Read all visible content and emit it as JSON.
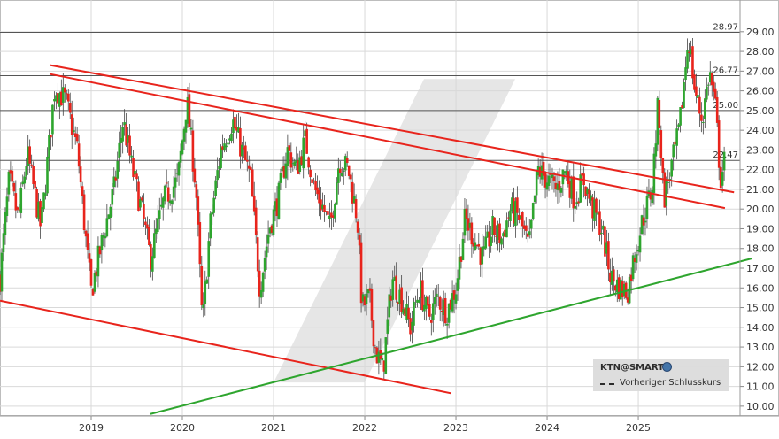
{
  "chart_data": {
    "type": "candlestick",
    "y_ticks": [
      "29.00",
      "28.00",
      "27.00",
      "26.00",
      "25.00",
      "24.00",
      "23.00",
      "22.00",
      "21.00",
      "20.00",
      "19.00",
      "18.00",
      "17.00",
      "16.00",
      "15.00",
      "14.00",
      "13.00",
      "12.00",
      "11.00",
      "10.00"
    ],
    "x_ticks": [
      "2019",
      "2020",
      "2021",
      "2022",
      "2023",
      "2024",
      "2025"
    ],
    "ylim": [
      9.5,
      29.8
    ],
    "xlim": [
      2018.0,
      2025.98
    ],
    "grid": true,
    "horizontal_levels": [
      {
        "label": "28.97",
        "value": 28.97
      },
      {
        "label": "26.77",
        "value": 26.77
      },
      {
        "label": "25.00",
        "value": 25.0
      },
      {
        "label": "22.47",
        "value": 22.47
      }
    ],
    "trend_lines": [
      {
        "color": "#e8241c",
        "from": [
          2018.55,
          27.3
        ],
        "to": [
          2026.05,
          20.85
        ]
      },
      {
        "color": "#e8241c",
        "from": [
          2018.55,
          26.85
        ],
        "to": [
          2025.95,
          20.05
        ]
      },
      {
        "color": "#e8241c",
        "from": [
          2018.0,
          15.35
        ],
        "to": [
          2022.95,
          10.65
        ]
      },
      {
        "color": "#2ea52e",
        "from": [
          2019.65,
          9.6
        ],
        "to": [
          2026.25,
          17.5
        ]
      }
    ],
    "price_path": [
      [
        2018.0,
        16.5
      ],
      [
        2018.1,
        21.5
      ],
      [
        2018.2,
        19.5
      ],
      [
        2018.3,
        22.8
      ],
      [
        2018.45,
        19.0
      ],
      [
        2018.6,
        26.2
      ],
      [
        2018.72,
        25.5
      ],
      [
        2018.85,
        23.0
      ],
      [
        2018.95,
        18.0
      ],
      [
        2019.0,
        15.8
      ],
      [
        2019.15,
        19.0
      ],
      [
        2019.25,
        21.0
      ],
      [
        2019.35,
        24.5
      ],
      [
        2019.45,
        22.0
      ],
      [
        2019.55,
        20.0
      ],
      [
        2019.65,
        17.5
      ],
      [
        2019.8,
        20.5
      ],
      [
        2019.95,
        21.5
      ],
      [
        2020.05,
        25.5
      ],
      [
        2020.15,
        21.0
      ],
      [
        2020.22,
        14.0
      ],
      [
        2020.3,
        19.0
      ],
      [
        2020.42,
        23.0
      ],
      [
        2020.55,
        24.5
      ],
      [
        2020.65,
        23.0
      ],
      [
        2020.75,
        21.5
      ],
      [
        2020.85,
        16.0
      ],
      [
        2020.95,
        19.0
      ],
      [
        2021.05,
        20.5
      ],
      [
        2021.15,
        23.0
      ],
      [
        2021.25,
        22.0
      ],
      [
        2021.35,
        23.5
      ],
      [
        2021.45,
        21.0
      ],
      [
        2021.55,
        20.0
      ],
      [
        2021.62,
        19.0
      ],
      [
        2021.72,
        22.5
      ],
      [
        2021.82,
        22.0
      ],
      [
        2021.92,
        19.5
      ],
      [
        2021.97,
        15.0
      ],
      [
        2022.05,
        15.5
      ],
      [
        2022.12,
        12.8
      ],
      [
        2022.2,
        11.8
      ],
      [
        2022.3,
        16.5
      ],
      [
        2022.4,
        15.5
      ],
      [
        2022.5,
        14.0
      ],
      [
        2022.6,
        16.0
      ],
      [
        2022.7,
        14.5
      ],
      [
        2022.8,
        15.5
      ],
      [
        2022.9,
        14.8
      ],
      [
        2023.0,
        16.0
      ],
      [
        2023.1,
        19.5
      ],
      [
        2023.2,
        18.5
      ],
      [
        2023.3,
        17.5
      ],
      [
        2023.4,
        19.0
      ],
      [
        2023.5,
        18.5
      ],
      [
        2023.6,
        20.0
      ],
      [
        2023.7,
        19.5
      ],
      [
        2023.8,
        18.0
      ],
      [
        2023.9,
        22.0
      ],
      [
        2024.0,
        21.5
      ],
      [
        2024.1,
        21.0
      ],
      [
        2024.2,
        22.0
      ],
      [
        2024.3,
        20.5
      ],
      [
        2024.4,
        21.5
      ],
      [
        2024.5,
        20.0
      ],
      [
        2024.6,
        19.0
      ],
      [
        2024.7,
        16.5
      ],
      [
        2024.8,
        16.0
      ],
      [
        2024.88,
        15.8
      ],
      [
        2024.95,
        17.5
      ],
      [
        2025.05,
        19.5
      ],
      [
        2025.15,
        21.0
      ],
      [
        2025.22,
        25.5
      ],
      [
        2025.28,
        20.5
      ],
      [
        2025.38,
        22.5
      ],
      [
        2025.45,
        24.0
      ],
      [
        2025.55,
        28.8
      ],
      [
        2025.62,
        26.0
      ],
      [
        2025.7,
        24.5
      ],
      [
        2025.78,
        27.0
      ],
      [
        2025.85,
        25.0
      ],
      [
        2025.9,
        21.5
      ],
      [
        2025.95,
        22.5
      ]
    ]
  },
  "legend": {
    "symbol": "KTN@SMART",
    "previous_close": "Vorheriger Schlusskurs"
  },
  "colors": {
    "up": "#2ea52e",
    "down": "#e8241c",
    "grid": "#d9d9d9",
    "level_line": "#555555",
    "watermark": "#e6e6e6"
  }
}
